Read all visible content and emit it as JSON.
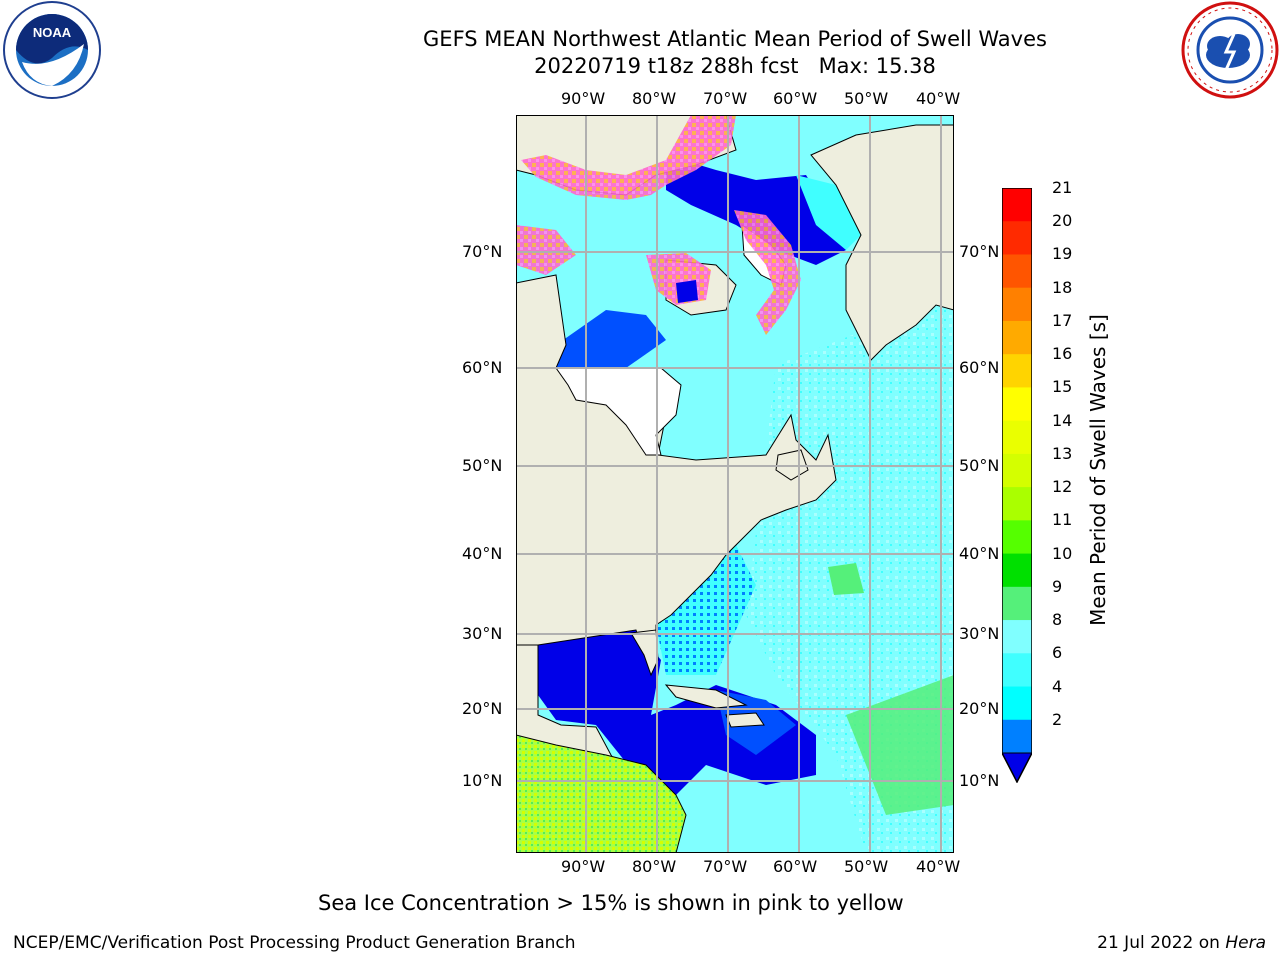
{
  "title": {
    "line1": "GEFS MEAN Northwest Atlantic Mean Period of Swell Waves",
    "line2": "20220719 t18z 288h fcst   Max: 15.38"
  },
  "logos": {
    "left": "NOAA",
    "right": "NATIONAL WEATHER SERVICE"
  },
  "map": {
    "lon_ticks": [
      "90°W",
      "80°W",
      "70°W",
      "60°W",
      "50°W",
      "40°W"
    ],
    "lat_ticks": [
      "70°N",
      "60°N",
      "50°N",
      "40°N",
      "30°N",
      "20°N",
      "10°N"
    ],
    "land_color": "#eeeede",
    "grid_color": "#b0b0b0"
  },
  "colorbar": {
    "title": "Mean Period of Swell Waves [s]",
    "labels": [
      "21",
      "20",
      "19",
      "18",
      "17",
      "16",
      "15",
      "14",
      "13",
      "12",
      "11",
      "10",
      "9",
      "8",
      "6",
      "4",
      "2"
    ],
    "colors": [
      "#ff0000",
      "#ff2a00",
      "#ff5500",
      "#ff8000",
      "#ffaa00",
      "#ffd400",
      "#ffff00",
      "#eaff00",
      "#d4ff00",
      "#aaff00",
      "#55ff00",
      "#00e000",
      "#55f07a",
      "#80ffff",
      "#40ffff",
      "#00ffff",
      "#0080ff"
    ],
    "under_color": "#0000e8"
  },
  "note": "Sea Ice Concentration > 15% is shown in pink to yellow",
  "footer": {
    "left": "NCEP/EMC/Verification Post Processing Product Generation Branch",
    "right_date": "21 Jul 2022 on ",
    "right_host": "Hera"
  }
}
